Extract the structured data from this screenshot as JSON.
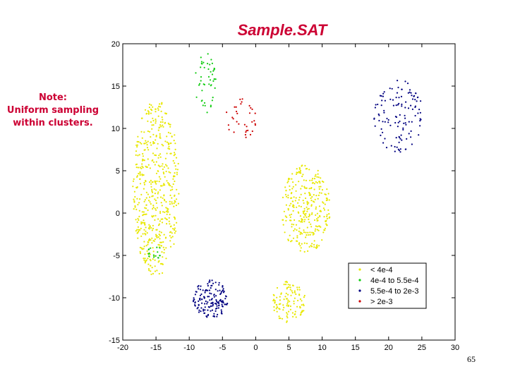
{
  "slide": {
    "title": "Sample.SAT",
    "note_lines": [
      "Note:",
      "Uniform sampling",
      "within clusters."
    ],
    "page_number": "65"
  },
  "chart_data": {
    "type": "scatter",
    "title": "",
    "xlabel": "",
    "ylabel": "",
    "xlim": [
      -20,
      30
    ],
    "ylim": [
      -15,
      20
    ],
    "xticks": [
      -20,
      -15,
      -10,
      -5,
      0,
      5,
      10,
      15,
      20,
      25,
      30
    ],
    "yticks": [
      -15,
      -10,
      -5,
      0,
      5,
      10,
      15,
      20
    ],
    "grid": false,
    "legend_position": "bottom-right",
    "series": [
      {
        "name": "< 4e-4",
        "color": "#e8e800",
        "clusters": [
          {
            "shape": "ellipse",
            "cx": -15,
            "cy": 3,
            "rx": 3.5,
            "ry": 10.5,
            "n": 520
          },
          {
            "shape": "ellipse",
            "cx": 7.5,
            "cy": 0.5,
            "rx": 3.8,
            "ry": 5.2,
            "n": 300
          },
          {
            "shape": "ellipse",
            "cx": 5,
            "cy": -10.5,
            "rx": 2.5,
            "ry": 2.5,
            "n": 110
          }
        ]
      },
      {
        "name": "4e-4 to 5.5e-4",
        "color": "#11cc11",
        "clusters": [
          {
            "shape": "ellipse",
            "cx": -7.5,
            "cy": 15.3,
            "rx": 1.6,
            "ry": 3.8,
            "n": 48
          },
          {
            "shape": "ellipse",
            "cx": -15.2,
            "cy": -4.6,
            "rx": 1.2,
            "ry": 0.8,
            "n": 16
          }
        ]
      },
      {
        "name": "5.5e-4 to 2e-3",
        "color": "#000080",
        "clusters": [
          {
            "shape": "ellipse",
            "cx": 21.5,
            "cy": 11.5,
            "rx": 3.7,
            "ry": 4.3,
            "n": 120
          },
          {
            "shape": "ellipse",
            "cx": -6.8,
            "cy": -10.2,
            "rx": 2.6,
            "ry": 2.3,
            "n": 150
          }
        ]
      },
      {
        "name": "> 2e-3",
        "color": "#cc0000",
        "clusters": [
          {
            "shape": "ellipse",
            "cx": -2.2,
            "cy": 11.2,
            "rx": 2.3,
            "ry": 2.6,
            "n": 34
          }
        ]
      }
    ]
  }
}
